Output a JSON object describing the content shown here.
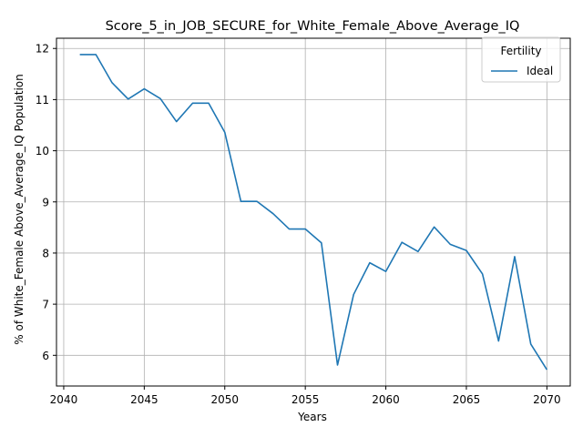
{
  "chart_data": {
    "type": "line",
    "title": "Score_5_in_JOB_SECURE_for_White_Female_Above_Average_IQ",
    "xlabel": "Years",
    "ylabel": "% of White_Female Above_Average_IQ Population",
    "xlim": [
      2039.55,
      2071.45
    ],
    "ylim": [
      5.4,
      12.2
    ],
    "xticks": [
      2040,
      2045,
      2050,
      2055,
      2060,
      2065,
      2070
    ],
    "yticks": [
      6,
      7,
      8,
      9,
      10,
      11,
      12
    ],
    "grid": true,
    "legend": {
      "title": "Fertility",
      "position": "top-right"
    },
    "series": [
      {
        "name": "Ideal",
        "color": "#1f77b4",
        "x": [
          2041,
          2042,
          2043,
          2044,
          2045,
          2046,
          2047,
          2048,
          2049,
          2050,
          2051,
          2052,
          2053,
          2054,
          2055,
          2056,
          2057,
          2058,
          2059,
          2060,
          2061,
          2062,
          2063,
          2064,
          2065,
          2066,
          2067,
          2068,
          2069,
          2070
        ],
        "y": [
          11.88,
          11.88,
          11.33,
          11.01,
          11.21,
          11.02,
          10.57,
          10.93,
          10.93,
          10.36,
          9.01,
          9.01,
          8.77,
          8.47,
          8.47,
          8.2,
          5.81,
          7.19,
          7.81,
          7.64,
          8.21,
          8.03,
          8.51,
          8.17,
          8.05,
          7.59,
          6.28,
          7.93,
          6.22,
          5.72
        ]
      }
    ]
  }
}
